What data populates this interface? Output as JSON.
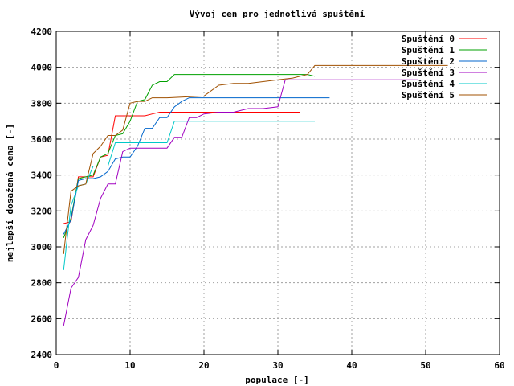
{
  "chart_data": {
    "type": "line",
    "title": "Vývoj cen pro jednotlivá spuštění",
    "xlabel": "populace [-]",
    "ylabel": "nejlepší dosažená cena [-]",
    "xlim": [
      0,
      60
    ],
    "ylim": [
      2400,
      4200
    ],
    "xticks": [
      0,
      10,
      20,
      30,
      40,
      50,
      60
    ],
    "yticks": [
      2400,
      2600,
      2800,
      3000,
      3200,
      3400,
      3600,
      3800,
      4000,
      4200
    ],
    "grid": true,
    "legend_position": "top-right",
    "series": [
      {
        "name": "Spuštění 0",
        "color": "#ff0000",
        "points": [
          [
            1,
            3130
          ],
          [
            2,
            3140
          ],
          [
            3,
            3390
          ],
          [
            4,
            3390
          ],
          [
            5,
            3390
          ],
          [
            6,
            3500
          ],
          [
            7,
            3510
          ],
          [
            8,
            3730
          ],
          [
            9,
            3730
          ],
          [
            10,
            3730
          ],
          [
            11,
            3730
          ],
          [
            12,
            3730
          ],
          [
            13,
            3740
          ],
          [
            14,
            3750
          ],
          [
            15,
            3750
          ],
          [
            20,
            3750
          ],
          [
            25,
            3750
          ],
          [
            30,
            3750
          ],
          [
            33,
            3750
          ]
        ]
      },
      {
        "name": "Spuštění 1",
        "color": "#00a000",
        "points": [
          [
            1,
            3050
          ],
          [
            2,
            3160
          ],
          [
            3,
            3380
          ],
          [
            4,
            3390
          ],
          [
            5,
            3400
          ],
          [
            6,
            3500
          ],
          [
            7,
            3520
          ],
          [
            8,
            3620
          ],
          [
            9,
            3630
          ],
          [
            10,
            3700
          ],
          [
            11,
            3810
          ],
          [
            12,
            3820
          ],
          [
            13,
            3900
          ],
          [
            14,
            3920
          ],
          [
            15,
            3920
          ],
          [
            16,
            3960
          ],
          [
            20,
            3960
          ],
          [
            30,
            3960
          ],
          [
            34,
            3960
          ],
          [
            35,
            3950
          ]
        ]
      },
      {
        "name": "Spuštění 2",
        "color": "#0066cc",
        "points": [
          [
            1,
            3070
          ],
          [
            2,
            3150
          ],
          [
            3,
            3370
          ],
          [
            4,
            3380
          ],
          [
            5,
            3380
          ],
          [
            6,
            3390
          ],
          [
            7,
            3420
          ],
          [
            8,
            3490
          ],
          [
            9,
            3500
          ],
          [
            10,
            3500
          ],
          [
            11,
            3560
          ],
          [
            12,
            3660
          ],
          [
            13,
            3660
          ],
          [
            14,
            3720
          ],
          [
            15,
            3720
          ],
          [
            16,
            3780
          ],
          [
            17,
            3810
          ],
          [
            18,
            3830
          ],
          [
            20,
            3830
          ],
          [
            30,
            3830
          ],
          [
            37,
            3830
          ]
        ]
      },
      {
        "name": "Spuštění 3",
        "color": "#a000c0",
        "points": [
          [
            1,
            2560
          ],
          [
            2,
            2770
          ],
          [
            3,
            2830
          ],
          [
            4,
            3040
          ],
          [
            5,
            3120
          ],
          [
            6,
            3270
          ],
          [
            7,
            3350
          ],
          [
            8,
            3350
          ],
          [
            9,
            3530
          ],
          [
            10,
            3550
          ],
          [
            11,
            3550
          ],
          [
            15,
            3550
          ],
          [
            16,
            3610
          ],
          [
            17,
            3610
          ],
          [
            18,
            3720
          ],
          [
            19,
            3720
          ],
          [
            20,
            3740
          ],
          [
            22,
            3750
          ],
          [
            24,
            3750
          ],
          [
            26,
            3770
          ],
          [
            28,
            3770
          ],
          [
            30,
            3780
          ],
          [
            31,
            3930
          ],
          [
            32,
            3930
          ],
          [
            40,
            3930
          ],
          [
            49,
            3930
          ]
        ]
      },
      {
        "name": "Spuštění 4",
        "color": "#00c8c8",
        "points": [
          [
            1,
            2870
          ],
          [
            2,
            3230
          ],
          [
            3,
            3340
          ],
          [
            4,
            3350
          ],
          [
            5,
            3450
          ],
          [
            6,
            3450
          ],
          [
            7,
            3450
          ],
          [
            8,
            3580
          ],
          [
            9,
            3580
          ],
          [
            10,
            3580
          ],
          [
            15,
            3580
          ],
          [
            16,
            3700
          ],
          [
            20,
            3700
          ],
          [
            25,
            3700
          ],
          [
            30,
            3700
          ],
          [
            35,
            3700
          ]
        ]
      },
      {
        "name": "Spuštění 5",
        "color": "#a05000",
        "points": [
          [
            1,
            2960
          ],
          [
            2,
            3310
          ],
          [
            3,
            3340
          ],
          [
            4,
            3350
          ],
          [
            5,
            3520
          ],
          [
            6,
            3560
          ],
          [
            7,
            3620
          ],
          [
            8,
            3620
          ],
          [
            9,
            3650
          ],
          [
            10,
            3800
          ],
          [
            11,
            3810
          ],
          [
            12,
            3810
          ],
          [
            13,
            3830
          ],
          [
            15,
            3830
          ],
          [
            20,
            3840
          ],
          [
            22,
            3900
          ],
          [
            24,
            3910
          ],
          [
            26,
            3910
          ],
          [
            28,
            3920
          ],
          [
            30,
            3930
          ],
          [
            32,
            3940
          ],
          [
            34,
            3960
          ],
          [
            35,
            4010
          ],
          [
            40,
            4010
          ],
          [
            50,
            4010
          ],
          [
            53,
            4010
          ]
        ]
      }
    ]
  }
}
